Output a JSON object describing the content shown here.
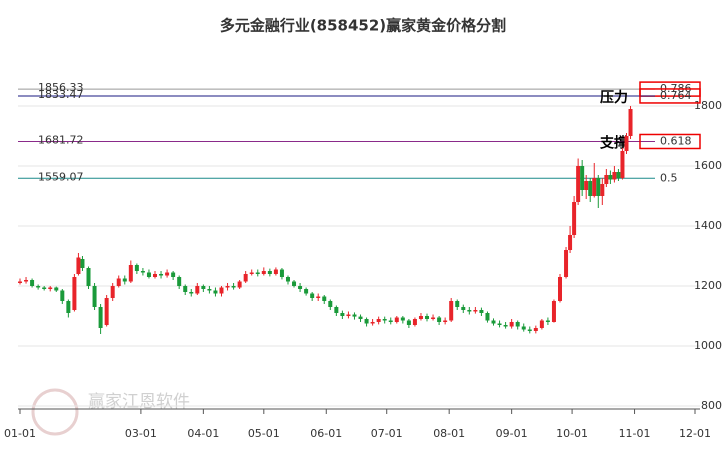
{
  "chart_data": {
    "type": "candlestick",
    "title": "多元金融行业(858452)赢家黄金价格分割",
    "watermark": "赢家江恩软件",
    "xlim": [
      0,
      335
    ],
    "xticks": [
      {
        "value": 0,
        "label": "01-01"
      },
      {
        "value": 60,
        "label": "03-01"
      },
      {
        "value": 91,
        "label": "04-01"
      },
      {
        "value": 121,
        "label": "05-01"
      },
      {
        "value": 152,
        "label": "06-01"
      },
      {
        "value": 182,
        "label": "07-01"
      },
      {
        "value": 213,
        "label": "08-01"
      },
      {
        "value": 244,
        "label": "09-01"
      },
      {
        "value": 274,
        "label": "10-01"
      },
      {
        "value": 305,
        "label": "11-01"
      },
      {
        "value": 335,
        "label": "12-01"
      }
    ],
    "ylim": [
      790,
      1950
    ],
    "yticks": [
      800,
      1000,
      1200,
      1400,
      1600,
      1800
    ],
    "grid": true,
    "up_color": "#e8242a",
    "down_color": "#1a9a3a",
    "levels": [
      {
        "value": 1856.33,
        "ratio": 0.786,
        "color": "#999999",
        "boxed": true
      },
      {
        "value": 1833.47,
        "ratio": 0.764,
        "color": "#1a1a80",
        "boxed": true
      },
      {
        "value": 1681.72,
        "ratio": 0.618,
        "color": "#8a2a8a",
        "boxed": true
      },
      {
        "value": 1559.07,
        "ratio": 0.5,
        "color": "#1a8a8a",
        "boxed": false
      }
    ],
    "annotations": [
      {
        "text": "压力",
        "level": 1
      },
      {
        "text": "支撑",
        "level": 2
      }
    ],
    "candles": [
      [
        0,
        1210,
        1215,
        1225,
        1205
      ],
      [
        3,
        1215,
        1220,
        1230,
        1208
      ],
      [
        6,
        1220,
        1200,
        1225,
        1195
      ],
      [
        9,
        1200,
        1195,
        1205,
        1188
      ],
      [
        12,
        1195,
        1190,
        1200,
        1185
      ],
      [
        15,
        1190,
        1195,
        1200,
        1182
      ],
      [
        18,
        1195,
        1185,
        1198,
        1180
      ],
      [
        21,
        1185,
        1150,
        1190,
        1140
      ],
      [
        24,
        1150,
        1110,
        1155,
        1095
      ],
      [
        27,
        1120,
        1230,
        1240,
        1115
      ],
      [
        29,
        1240,
        1295,
        1310,
        1235
      ],
      [
        31,
        1290,
        1260,
        1300,
        1250
      ],
      [
        34,
        1260,
        1200,
        1265,
        1190
      ],
      [
        37,
        1200,
        1130,
        1210,
        1120
      ],
      [
        40,
        1130,
        1060,
        1140,
        1040
      ],
      [
        43,
        1070,
        1160,
        1170,
        1065
      ],
      [
        46,
        1160,
        1200,
        1210,
        1150
      ],
      [
        49,
        1200,
        1225,
        1235,
        1195
      ],
      [
        52,
        1225,
        1215,
        1235,
        1205
      ],
      [
        55,
        1215,
        1270,
        1285,
        1210
      ],
      [
        58,
        1270,
        1250,
        1275,
        1240
      ],
      [
        61,
        1250,
        1245,
        1260,
        1235
      ],
      [
        64,
        1245,
        1230,
        1255,
        1225
      ],
      [
        67,
        1230,
        1240,
        1250,
        1225
      ],
      [
        70,
        1240,
        1235,
        1250,
        1225
      ],
      [
        73,
        1235,
        1245,
        1255,
        1228
      ],
      [
        76,
        1245,
        1230,
        1250,
        1220
      ],
      [
        79,
        1230,
        1200,
        1235,
        1190
      ],
      [
        82,
        1200,
        1180,
        1205,
        1170
      ],
      [
        85,
        1180,
        1175,
        1190,
        1165
      ],
      [
        88,
        1175,
        1200,
        1210,
        1170
      ],
      [
        91,
        1200,
        1190,
        1205,
        1180
      ],
      [
        94,
        1190,
        1185,
        1200,
        1175
      ],
      [
        97,
        1185,
        1175,
        1195,
        1165
      ],
      [
        100,
        1175,
        1195,
        1200,
        1165
      ],
      [
        103,
        1195,
        1200,
        1210,
        1185
      ],
      [
        106,
        1200,
        1195,
        1210,
        1188
      ],
      [
        109,
        1195,
        1215,
        1220,
        1190
      ],
      [
        112,
        1215,
        1240,
        1250,
        1210
      ],
      [
        115,
        1240,
        1245,
        1255,
        1235
      ],
      [
        118,
        1245,
        1240,
        1255,
        1232
      ],
      [
        121,
        1240,
        1250,
        1262,
        1235
      ],
      [
        124,
        1250,
        1240,
        1258,
        1232
      ],
      [
        127,
        1240,
        1255,
        1262,
        1235
      ],
      [
        130,
        1255,
        1230,
        1260,
        1222
      ],
      [
        133,
        1230,
        1215,
        1235,
        1205
      ],
      [
        136,
        1215,
        1200,
        1220,
        1195
      ],
      [
        139,
        1200,
        1190,
        1210,
        1180
      ],
      [
        142,
        1190,
        1175,
        1195,
        1168
      ],
      [
        145,
        1175,
        1160,
        1180,
        1150
      ],
      [
        148,
        1160,
        1165,
        1175,
        1150
      ],
      [
        151,
        1165,
        1150,
        1170,
        1140
      ],
      [
        154,
        1150,
        1130,
        1155,
        1120
      ],
      [
        157,
        1130,
        1110,
        1135,
        1100
      ],
      [
        160,
        1110,
        1100,
        1118,
        1090
      ],
      [
        163,
        1100,
        1105,
        1115,
        1092
      ],
      [
        166,
        1105,
        1098,
        1112,
        1088
      ],
      [
        169,
        1098,
        1090,
        1105,
        1080
      ],
      [
        172,
        1090,
        1075,
        1095,
        1065
      ],
      [
        175,
        1075,
        1080,
        1090,
        1068
      ],
      [
        178,
        1080,
        1090,
        1098,
        1072
      ],
      [
        181,
        1090,
        1085,
        1098,
        1075
      ],
      [
        184,
        1085,
        1080,
        1095,
        1072
      ],
      [
        187,
        1080,
        1095,
        1100,
        1075
      ],
      [
        190,
        1095,
        1085,
        1100,
        1075
      ],
      [
        193,
        1085,
        1070,
        1090,
        1060
      ],
      [
        196,
        1070,
        1090,
        1095,
        1065
      ],
      [
        199,
        1090,
        1100,
        1110,
        1085
      ],
      [
        202,
        1100,
        1090,
        1108,
        1082
      ],
      [
        205,
        1090,
        1095,
        1105,
        1085
      ],
      [
        208,
        1095,
        1080,
        1100,
        1070
      ],
      [
        211,
        1080,
        1085,
        1095,
        1072
      ],
      [
        214,
        1085,
        1150,
        1160,
        1080
      ],
      [
        217,
        1150,
        1130,
        1155,
        1120
      ],
      [
        220,
        1130,
        1120,
        1138,
        1110
      ],
      [
        223,
        1120,
        1115,
        1130,
        1105
      ],
      [
        226,
        1115,
        1120,
        1130,
        1108
      ],
      [
        229,
        1120,
        1110,
        1128,
        1100
      ],
      [
        232,
        1110,
        1085,
        1115,
        1078
      ],
      [
        235,
        1085,
        1075,
        1092,
        1068
      ],
      [
        238,
        1075,
        1070,
        1085,
        1062
      ],
      [
        241,
        1070,
        1065,
        1080,
        1058
      ],
      [
        244,
        1065,
        1080,
        1090,
        1058
      ],
      [
        247,
        1080,
        1065,
        1085,
        1055
      ],
      [
        250,
        1065,
        1055,
        1075,
        1048
      ],
      [
        253,
        1055,
        1050,
        1065,
        1042
      ],
      [
        256,
        1050,
        1060,
        1068,
        1042
      ],
      [
        259,
        1060,
        1085,
        1090,
        1055
      ],
      [
        262,
        1085,
        1080,
        1095,
        1070
      ],
      [
        265,
        1080,
        1150,
        1155,
        1078
      ],
      [
        268,
        1150,
        1230,
        1240,
        1145
      ],
      [
        271,
        1230,
        1320,
        1330,
        1225
      ],
      [
        273,
        1320,
        1370,
        1400,
        1310
      ],
      [
        275,
        1370,
        1480,
        1500,
        1360
      ],
      [
        277,
        1480,
        1600,
        1625,
        1470
      ],
      [
        279,
        1600,
        1520,
        1620,
        1500
      ],
      [
        281,
        1520,
        1550,
        1570,
        1490
      ],
      [
        283,
        1550,
        1500,
        1560,
        1480
      ],
      [
        285,
        1500,
        1560,
        1610,
        1495
      ],
      [
        287,
        1560,
        1500,
        1570,
        1460
      ],
      [
        289,
        1500,
        1540,
        1560,
        1470
      ],
      [
        291,
        1540,
        1570,
        1590,
        1530
      ],
      [
        293,
        1570,
        1555,
        1585,
        1540
      ],
      [
        295,
        1555,
        1580,
        1600,
        1545
      ],
      [
        297,
        1580,
        1560,
        1590,
        1550
      ],
      [
        299,
        1560,
        1650,
        1660,
        1555
      ],
      [
        301,
        1650,
        1700,
        1710,
        1640
      ],
      [
        303,
        1700,
        1790,
        1800,
        1690
      ]
    ]
  }
}
